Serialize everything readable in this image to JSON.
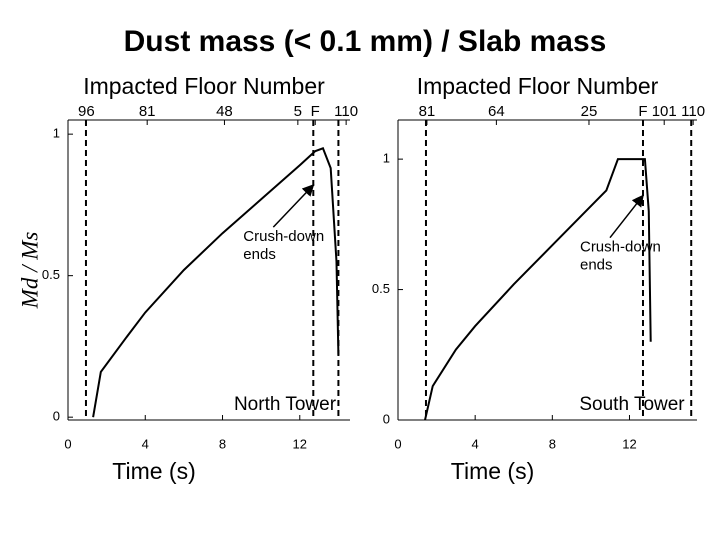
{
  "title": "Dust mass (< 0.1 mm) / Slab mass",
  "chart_data": [
    {
      "type": "line",
      "ylabel": "Md / Ms",
      "xlabel": "Time (s)",
      "top_axis_label": "Impacted Floor Number",
      "panel_label": "North Tower",
      "xlim": [
        0,
        14.6
      ],
      "ylim": [
        -0.01,
        1.05
      ],
      "xticks": [
        0,
        4,
        8,
        12
      ],
      "yticks": [
        0,
        0.5,
        1
      ],
      "top_ticks": [
        {
          "value": 0.95,
          "label": "96"
        },
        {
          "value": 4.1,
          "label": "81"
        },
        {
          "value": 8.1,
          "label": "48"
        },
        {
          "value": 11.9,
          "label": "5"
        },
        {
          "value": 12.8,
          "label": "F"
        },
        {
          "value": 14.4,
          "label": "110"
        }
      ],
      "vlines": [
        0.93,
        12.7,
        14.0
      ],
      "annotation": {
        "lines": [
          "Crush-down",
          "ends"
        ],
        "x": 12.7,
        "y": 0.82
      },
      "series": [
        {
          "color": "#000000",
          "x": [
            1.3,
            1.7,
            3,
            4,
            6,
            8,
            10,
            12,
            12.8,
            13.2,
            13.6,
            13.9,
            14.0
          ],
          "values": [
            0,
            0.16,
            0.28,
            0.37,
            0.52,
            0.65,
            0.77,
            0.89,
            0.94,
            0.95,
            0.88,
            0.55,
            0.22
          ]
        }
      ]
    },
    {
      "type": "line",
      "xlabel": "Time (s)",
      "top_axis_label": "Impacted Floor Number",
      "panel_label": "South Tower",
      "xlim": [
        0,
        15.5
      ],
      "ylim": [
        0,
        1.15
      ],
      "xticks": [
        0,
        4,
        8,
        12
      ],
      "yticks": [
        0,
        0.5,
        1
      ],
      "top_ticks": [
        {
          "value": 1.5,
          "label": "81"
        },
        {
          "value": 5.1,
          "label": "64"
        },
        {
          "value": 9.9,
          "label": "25"
        },
        {
          "value": 12.7,
          "label": "F"
        },
        {
          "value": 13.8,
          "label": "101"
        },
        {
          "value": 15.3,
          "label": "110"
        }
      ],
      "vlines": [
        1.45,
        12.7,
        15.2
      ],
      "annotation": {
        "lines": [
          "Crush-down",
          "ends"
        ],
        "x": 12.7,
        "y": 0.86
      },
      "series": [
        {
          "color": "#000000",
          "x": [
            1.4,
            1.8,
            3,
            4,
            6,
            8,
            10,
            10.8,
            11.4,
            12.8,
            13.0,
            13.1
          ],
          "values": [
            0,
            0.13,
            0.27,
            0.36,
            0.52,
            0.67,
            0.82,
            0.88,
            1.0,
            1.0,
            0.8,
            0.3
          ]
        }
      ]
    }
  ]
}
